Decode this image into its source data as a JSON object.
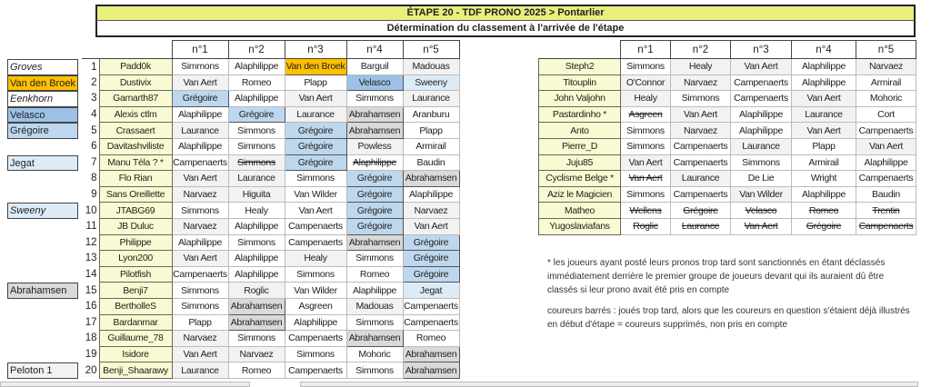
{
  "title": "ÉTAPE 20 - TDF PRONO 2025 > Pontarlier",
  "subtitle": "Détermination du classement à l'arrivée de l'étape",
  "headers": [
    "n°1",
    "n°2",
    "n°3",
    "n°4",
    "n°5"
  ],
  "colors": {
    "w": "#ffffff",
    "g": "#f2f2f2",
    "b": "#bdd7ee",
    "v": "#9bc2e6",
    "o": "#ffc000",
    "a": "#d9d9d9",
    "j": "#ddebf7",
    "name": "#fafad2",
    "title": "#e8ef7c"
  },
  "side_labels": [
    {
      "rank": 1,
      "text": "Groves",
      "style": "w",
      "italic": true
    },
    {
      "rank": 2,
      "text": "Van den Broek",
      "style": "o"
    },
    {
      "rank": 3,
      "text": "Eenkhorn",
      "style": "w",
      "italic": true
    },
    {
      "rank": 4,
      "text": "Velasco",
      "style": "v"
    },
    {
      "rank": 5,
      "text": "Grégoire",
      "style": "b"
    },
    {
      "rank": 7,
      "text": "Jegat",
      "style": "j"
    },
    {
      "rank": 10,
      "text": "Sweeny",
      "style": "j",
      "italic": true
    },
    {
      "rank": 15,
      "text": "Abrahamsen",
      "style": "a"
    },
    {
      "rank": 20,
      "text": "Peloton 1",
      "style": "g"
    }
  ],
  "left_table": [
    {
      "rank": "1",
      "name": "Padd0k",
      "picks": [
        [
          "Simmons",
          "w"
        ],
        [
          "Alaphilippe",
          "w"
        ],
        [
          "Van den Broek",
          "o"
        ],
        [
          "Barguil",
          "w"
        ],
        [
          "Madouas",
          "g"
        ]
      ]
    },
    {
      "rank": "2",
      "name": "Dustivix",
      "picks": [
        [
          "Van Aert",
          "g"
        ],
        [
          "Romeo",
          "w"
        ],
        [
          "Plapp",
          "w"
        ],
        [
          "Velasco",
          "v"
        ],
        [
          "Sweeny",
          "j"
        ]
      ]
    },
    {
      "rank": "3",
      "name": "Gamarth87",
      "picks": [
        [
          "Grégoire",
          "b"
        ],
        [
          "Alaphilippe",
          "w"
        ],
        [
          "Van Aert",
          "g"
        ],
        [
          "Simmons",
          "w"
        ],
        [
          "Laurance",
          "g"
        ]
      ]
    },
    {
      "rank": "4",
      "name": "Alexis ctlm",
      "picks": [
        [
          "Alaphilippe",
          "w"
        ],
        [
          "Grégoire",
          "b"
        ],
        [
          "Laurance",
          "g"
        ],
        [
          "Abrahamsen",
          "a"
        ],
        [
          "Aranburu",
          "w"
        ]
      ]
    },
    {
      "rank": "5",
      "name": "Crassaert",
      "picks": [
        [
          "Laurance",
          "g"
        ],
        [
          "Simmons",
          "w"
        ],
        [
          "Grégoire",
          "b"
        ],
        [
          "Abrahamsen",
          "a"
        ],
        [
          "Plapp",
          "w"
        ]
      ]
    },
    {
      "rank": "6",
      "name": "Davitashviliste",
      "picks": [
        [
          "Alaphilippe",
          "w"
        ],
        [
          "Simmons",
          "w"
        ],
        [
          "Grégoire",
          "b"
        ],
        [
          "Powless",
          "g"
        ],
        [
          "Armirail",
          "w"
        ]
      ]
    },
    {
      "rank": "7",
      "name": "Manu Téla ? *",
      "picks": [
        [
          "Campenaerts",
          "w"
        ],
        [
          "Simmons",
          "g s"
        ],
        [
          "Grégoire",
          "b"
        ],
        [
          "Alaphilippe",
          "w s"
        ],
        [
          "Baudin",
          "w"
        ]
      ]
    },
    {
      "rank": "8",
      "name": "Flo Rian",
      "picks": [
        [
          "Van Aert",
          "g"
        ],
        [
          "Laurance",
          "g"
        ],
        [
          "Simmons",
          "w"
        ],
        [
          "Grégoire",
          "b"
        ],
        [
          "Abrahamsen",
          "a"
        ]
      ]
    },
    {
      "rank": "9",
      "name": "Sans Oreillette",
      "picks": [
        [
          "Narvaez",
          "g"
        ],
        [
          "Higuita",
          "g"
        ],
        [
          "Van Wilder",
          "w"
        ],
        [
          "Grégoire",
          "b"
        ],
        [
          "Alaphilippe",
          "w"
        ]
      ]
    },
    {
      "rank": "10",
      "name": "JTABG69",
      "picks": [
        [
          "Simmons",
          "w"
        ],
        [
          "Healy",
          "w"
        ],
        [
          "Van Aert",
          "w"
        ],
        [
          "Grégoire",
          "b"
        ],
        [
          "Narvaez",
          "g"
        ]
      ]
    },
    {
      "rank": "11",
      "name": "JB Duluc",
      "picks": [
        [
          "Narvaez",
          "g"
        ],
        [
          "Alaphilippe",
          "w"
        ],
        [
          "Campenaerts",
          "w"
        ],
        [
          "Grégoire",
          "b"
        ],
        [
          "Van Aert",
          "g"
        ]
      ]
    },
    {
      "rank": "12",
      "name": "Philippe",
      "picks": [
        [
          "Alaphilippe",
          "w"
        ],
        [
          "Simmons",
          "w"
        ],
        [
          "Campenaerts",
          "w"
        ],
        [
          "Abrahamsen",
          "a"
        ],
        [
          "Grégoire",
          "b"
        ]
      ]
    },
    {
      "rank": "13",
      "name": "Lyon200",
      "picks": [
        [
          "Van Aert",
          "g"
        ],
        [
          "Alaphilippe",
          "w"
        ],
        [
          "Healy",
          "g"
        ],
        [
          "Simmons",
          "w"
        ],
        [
          "Grégoire",
          "b"
        ]
      ]
    },
    {
      "rank": "14",
      "name": "Pilotfish",
      "picks": [
        [
          "Campenaerts",
          "w"
        ],
        [
          "Alaphilippe",
          "w"
        ],
        [
          "Simmons",
          "w"
        ],
        [
          "Romeo",
          "w"
        ],
        [
          "Grégoire",
          "b"
        ]
      ]
    },
    {
      "rank": "15",
      "name": "Benji7",
      "picks": [
        [
          "Simmons",
          "w"
        ],
        [
          "Roglic",
          "g"
        ],
        [
          "Van Wilder",
          "w"
        ],
        [
          "Alaphilippe",
          "w"
        ],
        [
          "Jegat",
          "j"
        ]
      ]
    },
    {
      "rank": "16",
      "name": "BertholleS",
      "picks": [
        [
          "Simmons",
          "w"
        ],
        [
          "Abrahamsen",
          "a"
        ],
        [
          "Asgreen",
          "w"
        ],
        [
          "Madouas",
          "g"
        ],
        [
          "Campenaerts",
          "w"
        ]
      ]
    },
    {
      "rank": "17",
      "name": "Bardanmar",
      "picks": [
        [
          "Plapp",
          "w"
        ],
        [
          "Abrahamsen",
          "a"
        ],
        [
          "Alaphilippe",
          "w"
        ],
        [
          "Simmons",
          "w"
        ],
        [
          "Campenaerts",
          "w"
        ]
      ]
    },
    {
      "rank": "18",
      "name": "Guillaume_78",
      "picks": [
        [
          "Narvaez",
          "g"
        ],
        [
          "Simmons",
          "w"
        ],
        [
          "Campenaerts",
          "w"
        ],
        [
          "Abrahamsen",
          "a"
        ],
        [
          "Romeo",
          "w"
        ]
      ]
    },
    {
      "rank": "19",
      "name": "Isidore",
      "picks": [
        [
          "Van Aert",
          "g"
        ],
        [
          "Narvaez",
          "g"
        ],
        [
          "Simmons",
          "w"
        ],
        [
          "Mohoric",
          "w"
        ],
        [
          "Abrahamsen",
          "a"
        ]
      ]
    },
    {
      "rank": "20",
      "name": "Benji_Shaarawy",
      "picks": [
        [
          "Laurance",
          "g"
        ],
        [
          "Romeo",
          "w"
        ],
        [
          "Campenaerts",
          "w"
        ],
        [
          "Simmons",
          "w"
        ],
        [
          "Abrahamsen",
          "a"
        ]
      ]
    }
  ],
  "right_table": [
    {
      "name": "Steph2",
      "picks": [
        [
          "Simmons",
          "w"
        ],
        [
          "Healy",
          "g"
        ],
        [
          "Van Aert",
          "g"
        ],
        [
          "Alaphilippe",
          "w"
        ],
        [
          "Narvaez",
          "g"
        ]
      ]
    },
    {
      "name": "Titouplin",
      "picks": [
        [
          "O'Connor",
          "g"
        ],
        [
          "Narvaez",
          "g"
        ],
        [
          "Campenaerts",
          "w"
        ],
        [
          "Alaphilippe",
          "w"
        ],
        [
          "Armirail",
          "w"
        ]
      ]
    },
    {
      "name": "John Valjohn",
      "picks": [
        [
          "Healy",
          "g"
        ],
        [
          "Simmons",
          "w"
        ],
        [
          "Campenaerts",
          "w"
        ],
        [
          "Van Aert",
          "g"
        ],
        [
          "Mohoric",
          "w"
        ]
      ]
    },
    {
      "name": "Pastardinho *",
      "picks": [
        [
          "Asgreen",
          "w s"
        ],
        [
          "Van Aert",
          "g"
        ],
        [
          "Alaphilippe",
          "w"
        ],
        [
          "Laurance",
          "g"
        ],
        [
          "Cort",
          "w"
        ]
      ]
    },
    {
      "name": "Anto",
      "picks": [
        [
          "Simmons",
          "w"
        ],
        [
          "Narvaez",
          "g"
        ],
        [
          "Alaphilippe",
          "w"
        ],
        [
          "Van Aert",
          "g"
        ],
        [
          "Campenaerts",
          "w"
        ]
      ]
    },
    {
      "name": "Pierre_D",
      "picks": [
        [
          "Simmons",
          "w"
        ],
        [
          "Campenaerts",
          "w"
        ],
        [
          "Laurance",
          "g"
        ],
        [
          "Plapp",
          "w"
        ],
        [
          "Van Aert",
          "g"
        ]
      ]
    },
    {
      "name": "Juju85",
      "picks": [
        [
          "Van Aert",
          "g"
        ],
        [
          "Campenaerts",
          "w"
        ],
        [
          "Simmons",
          "w"
        ],
        [
          "Armirail",
          "w"
        ],
        [
          "Alaphilippe",
          "w"
        ]
      ]
    },
    {
      "name": "Cyclisme Belge *",
      "picks": [
        [
          "Van Aert",
          "w s"
        ],
        [
          "Laurance",
          "g"
        ],
        [
          "De Lie",
          "w"
        ],
        [
          "Wright",
          "w"
        ],
        [
          "Campenaerts",
          "w"
        ]
      ]
    },
    {
      "name": "Aziz le Magicien",
      "picks": [
        [
          "Simmons",
          "w"
        ],
        [
          "Campenaerts",
          "w"
        ],
        [
          "Van Wilder",
          "g"
        ],
        [
          "Alaphilippe",
          "w"
        ],
        [
          "Baudin",
          "w"
        ]
      ]
    },
    {
      "name": "Matheo",
      "picks": [
        [
          "Wellens",
          "w s"
        ],
        [
          "Grégoire",
          "w s"
        ],
        [
          "Velasco",
          "w s"
        ],
        [
          "Romeo",
          "w s"
        ],
        [
          "Trentin",
          "w s"
        ]
      ]
    },
    {
      "name": "Yugoslaviafans",
      "picks": [
        [
          "Roglic",
          "w s"
        ],
        [
          "Laurance",
          "w s"
        ],
        [
          "Van Aert",
          "w s"
        ],
        [
          "Grégoire",
          "w s"
        ],
        [
          "Campenaerts",
          "w s"
        ]
      ]
    }
  ],
  "notes": [
    "* les joueurs ayant posté leurs pronos trop tard sont sanctionnés en étant déclassés immédiatement derrière le premier groupe de joueurs devant qui ils auraient dû être classés si leur prono avait été pris en compte",
    "coureurs barrés : joués trop tard, alors que les coureurs en question s'étaient déjà illustrés en début d'étape = coureurs supprimés, non pris en compte"
  ]
}
